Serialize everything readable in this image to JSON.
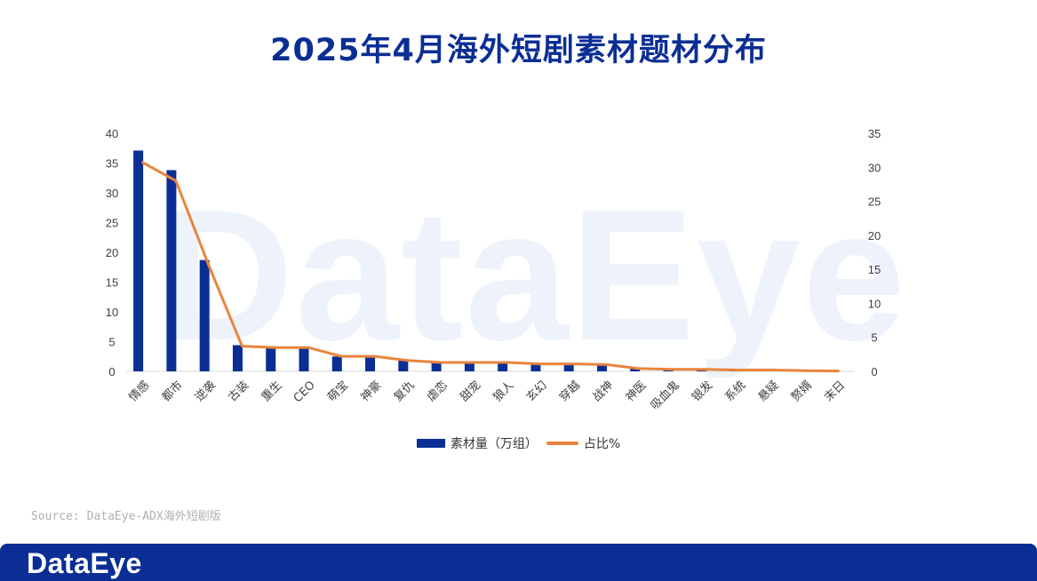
{
  "title": "2025年4月海外短剧素材题材分布",
  "watermark_text": "DataEye",
  "source_text": "Source: DataEye-ADX海外短剧版",
  "footer_logo": "DataEye",
  "colors": {
    "bar": "#0b2e95",
    "line": "#e8853d",
    "title": "#0b2e95",
    "footer": "#0b2e95"
  },
  "chart_data": {
    "type": "bar",
    "categories": [
      "情感",
      "都市",
      "逆袭",
      "古装",
      "重生",
      "CEO",
      "萌宝",
      "神豪",
      "复仇",
      "虐恋",
      "甜宠",
      "狼人",
      "玄幻",
      "穿越",
      "战神",
      "神医",
      "吸血鬼",
      "银发",
      "系统",
      "悬疑",
      "赘婿",
      "末日"
    ],
    "series": [
      {
        "name": "素材量（万组）",
        "type": "bar",
        "axis": "left",
        "values": [
          37.1,
          33.8,
          18.7,
          4.4,
          4.2,
          4.1,
          2.5,
          2.7,
          1.8,
          1.5,
          1.5,
          1.5,
          1.3,
          1.3,
          1.1,
          0.5,
          0.4,
          0.4,
          0.2,
          0.2,
          0.1,
          0.1
        ]
      },
      {
        "name": "占比%",
        "type": "line",
        "axis": "right",
        "values": [
          30.7,
          28.0,
          15.5,
          3.7,
          3.5,
          3.5,
          2.2,
          2.2,
          1.6,
          1.3,
          1.3,
          1.3,
          1.1,
          1.1,
          1.0,
          0.4,
          0.3,
          0.3,
          0.2,
          0.2,
          0.1,
          0.05
        ]
      }
    ],
    "ylim_left": [
      0,
      40
    ],
    "yticks_left": [
      0,
      5,
      10,
      15,
      20,
      25,
      30,
      35,
      40
    ],
    "ylim_right": [
      0,
      35
    ],
    "yticks_right": [
      0,
      5,
      10,
      15,
      20,
      25,
      30,
      35
    ],
    "grid": false,
    "legend_position": "bottom"
  }
}
